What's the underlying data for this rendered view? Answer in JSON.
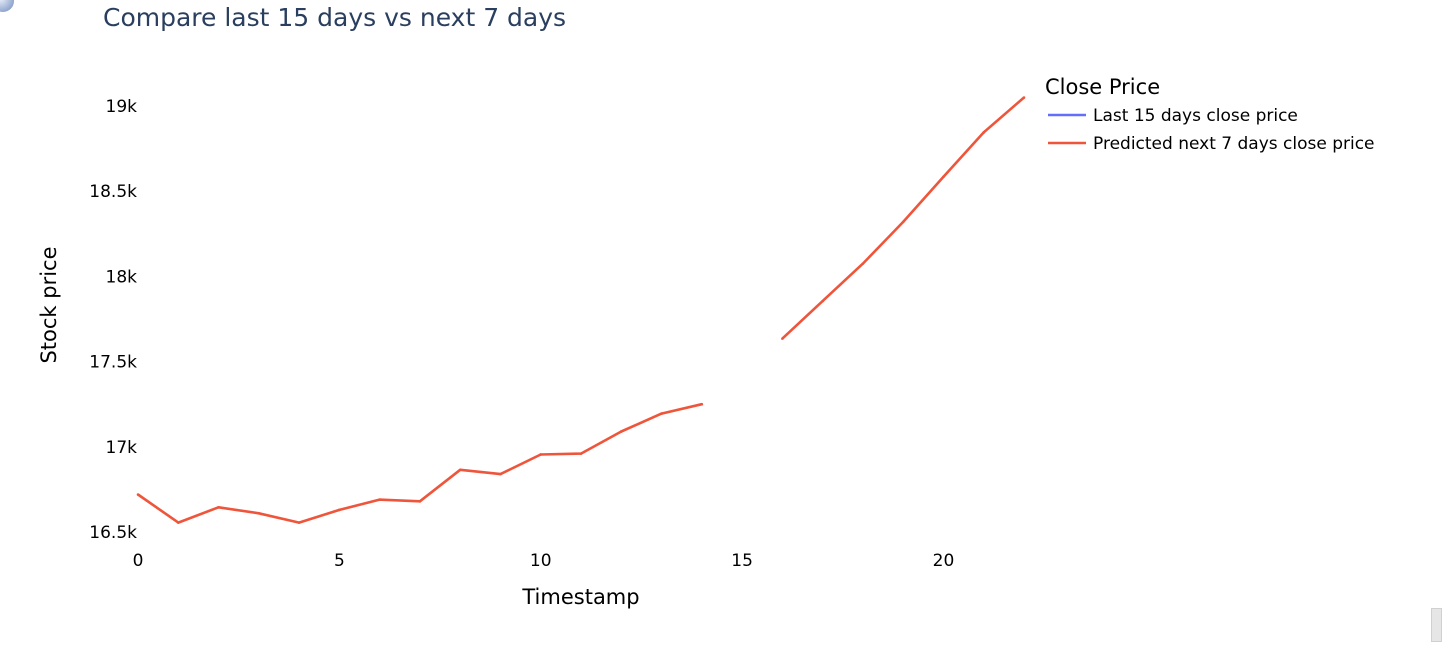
{
  "chart_data": {
    "type": "line",
    "title": "Compare last 15 days vs next 7 days",
    "xlabel": "Timestamp",
    "ylabel": "Stock price",
    "xlim": [
      0,
      22
    ],
    "ylim": [
      16500,
      19100
    ],
    "x_ticks": [
      0,
      5,
      10,
      15,
      20
    ],
    "x_tick_labels": [
      "0",
      "5",
      "10",
      "15",
      "20"
    ],
    "y_ticks": [
      16500,
      17000,
      17500,
      18000,
      18500,
      19000
    ],
    "y_tick_labels": [
      "16.5k",
      "17k",
      "17.5k",
      "18k",
      "18.5k",
      "19k"
    ],
    "grid": false,
    "legend": {
      "title": "Close Price",
      "placement": "top-right",
      "entries": [
        {
          "name": "Last 15 days close price",
          "color": "#636efa"
        },
        {
          "name": "Predicted next 7 days close price",
          "color": "#ef553b"
        }
      ]
    },
    "series": [
      {
        "name": "Last 15 days close price",
        "color": "#636efa",
        "x": [
          0,
          1,
          2,
          3,
          4,
          5,
          6,
          7,
          8,
          9,
          10,
          11,
          12,
          13,
          14
        ],
        "values": [
          16720,
          16555,
          16645,
          16610,
          16555,
          16630,
          16690,
          16680,
          16865,
          16840,
          16955,
          16960,
          17090,
          17195,
          17250
        ]
      },
      {
        "name": "Predicted next 7 days close price",
        "color": "#ef553b",
        "x": [
          16,
          17,
          18,
          19,
          20,
          21,
          22
        ],
        "values": [
          17635,
          17855,
          18075,
          18320,
          18585,
          18845,
          19050
        ]
      }
    ]
  }
}
